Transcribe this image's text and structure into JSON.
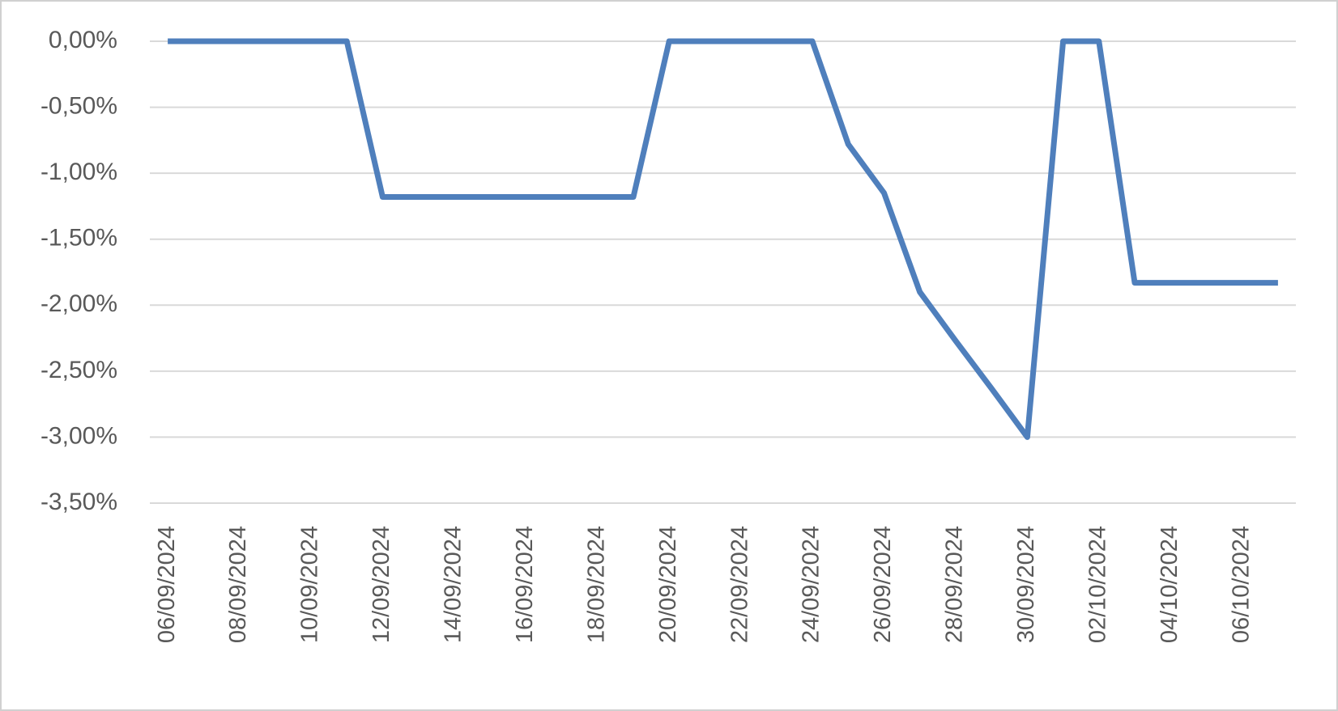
{
  "chart_data": {
    "type": "line",
    "categories": [
      "06/09/2024",
      null,
      "08/09/2024",
      null,
      "10/09/2024",
      null,
      "12/09/2024",
      null,
      "14/09/2024",
      null,
      "16/09/2024",
      null,
      "18/09/2024",
      null,
      "20/09/2024",
      null,
      "22/09/2024",
      null,
      "24/09/2024",
      null,
      "26/09/2024",
      null,
      "28/09/2024",
      null,
      "30/09/2024",
      null,
      "02/10/2024",
      null,
      "04/10/2024",
      null,
      "06/10/2024",
      null
    ],
    "values": [
      0,
      0,
      0,
      0,
      0,
      0,
      -1.18,
      -1.18,
      -1.18,
      -1.18,
      -1.18,
      -1.18,
      -1.18,
      -1.18,
      0,
      0,
      0,
      0,
      0,
      -0.78,
      -1.15,
      -1.9,
      -2.27,
      -2.63,
      -3.0,
      0,
      0,
      -1.83,
      -1.83,
      -1.83,
      -1.83,
      -1.83
    ],
    "color": "#4f7fbc",
    "ylim": [
      -3.5,
      0
    ],
    "yticks": [
      {
        "value": 0,
        "label": "0,00%"
      },
      {
        "value": -0.5,
        "label": "-0,50%"
      },
      {
        "value": -1.0,
        "label": "-1,00%"
      },
      {
        "value": -1.5,
        "label": "-1,50%"
      },
      {
        "value": -2.0,
        "label": "-2,00%"
      },
      {
        "value": -2.5,
        "label": "-2,50%"
      },
      {
        "value": -3.0,
        "label": "-3,00%"
      },
      {
        "value": -3.5,
        "label": "-3,50%"
      }
    ],
    "grid": true
  }
}
